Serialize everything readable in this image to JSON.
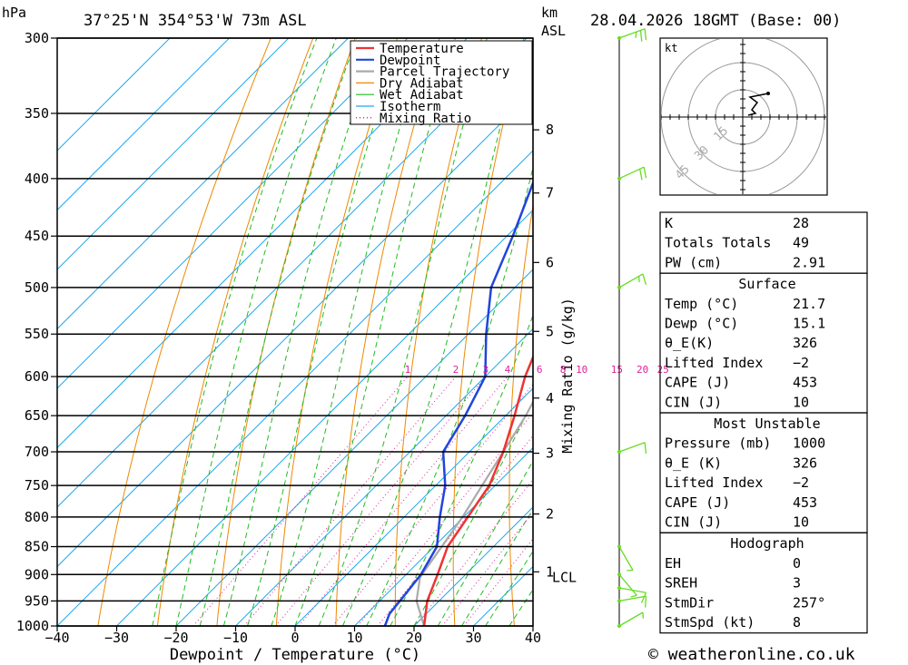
{
  "header": {
    "units_top": "hPa",
    "location": "37°25'N  354°53'W  73m  ASL",
    "km_label": "km",
    "asl_label": "ASL",
    "datetime": "28.04.2026  18GMT  (Base: 00)"
  },
  "footer": {
    "copyright": "© weatheronline.co.uk"
  },
  "colors": {
    "temperature": "#ee3333",
    "dewpoint": "#2244dd",
    "parcel": "#aaaaaa",
    "dry_adiabat": "#ee8800",
    "wet_adiabat": "#22bb22",
    "isotherm": "#22aaee",
    "mixing_ratio": "#dd2299",
    "wind": "#66dd22"
  },
  "chart_data": {
    "type": "skew-t",
    "xlabel": "Dewpoint / Temperature (°C)",
    "ylabel_left": "hPa",
    "ylabel_right": "Mixing Ratio (g/kg)",
    "pressure_levels": [
      300,
      350,
      400,
      450,
      500,
      550,
      600,
      650,
      700,
      750,
      800,
      850,
      900,
      950,
      1000
    ],
    "pressure_labels": [
      "300",
      "350",
      "400",
      "450",
      "500",
      "550",
      "600",
      "650",
      "700",
      "750",
      "800",
      "850",
      "900",
      "950",
      "1000"
    ],
    "temp_ticks": [
      -40,
      -30,
      -20,
      -10,
      0,
      10,
      20,
      30,
      40
    ],
    "temp_tick_labels": [
      "−40",
      "−30",
      "−20",
      "−10",
      "0",
      "10",
      "20",
      "30",
      "40"
    ],
    "km_ticks": [
      {
        "label": "8",
        "p": 362
      },
      {
        "label": "7",
        "p": 412
      },
      {
        "label": "6",
        "p": 475
      },
      {
        "label": "5",
        "p": 547
      },
      {
        "label": "4",
        "p": 627
      },
      {
        "label": "3",
        "p": 702
      },
      {
        "label": "2",
        "p": 795
      },
      {
        "label": "1",
        "p": 895
      }
    ],
    "lcl": {
      "label": "LCL",
      "p": 905
    },
    "mixing_ratio_labels": [
      "1",
      "2",
      "3",
      "4",
      "6",
      "8",
      "10",
      "15",
      "20",
      "25"
    ],
    "mixing_ratio_values": [
      1,
      2,
      3,
      4,
      6,
      8,
      10,
      15,
      20,
      25
    ],
    "legend": [
      "Temperature",
      "Dewpoint",
      "Parcel Trajectory",
      "Dry Adiabat",
      "Wet Adiabat",
      "Isotherm",
      "Mixing Ratio"
    ],
    "series": [
      {
        "name": "Temperature",
        "points": [
          [
            1000,
            21.7
          ],
          [
            950,
            18
          ],
          [
            900,
            15.3
          ],
          [
            850,
            12.3
          ],
          [
            800,
            10.7
          ],
          [
            750,
            9
          ],
          [
            700,
            5.7
          ],
          [
            650,
            1.5
          ],
          [
            600,
            -3.3
          ],
          [
            550,
            -7.5
          ],
          [
            500,
            -12
          ],
          [
            450,
            -18.5
          ],
          [
            400,
            -26
          ],
          [
            350,
            -35
          ],
          [
            300,
            -45
          ]
        ]
      },
      {
        "name": "Dewpoint",
        "points": [
          [
            1000,
            15.1
          ],
          [
            975,
            13.8
          ],
          [
            950,
            13.4
          ],
          [
            900,
            12.5
          ],
          [
            850,
            10.5
          ],
          [
            800,
            6
          ],
          [
            750,
            1.6
          ],
          [
            700,
            -4.4
          ],
          [
            650,
            -6.8
          ],
          [
            600,
            -10
          ],
          [
            550,
            -17
          ],
          [
            500,
            -24
          ],
          [
            450,
            -29
          ],
          [
            400,
            -35
          ],
          [
            350,
            -41
          ],
          [
            300,
            -49
          ]
        ]
      },
      {
        "name": "Parcel Trajectory",
        "points": [
          [
            1000,
            21.7
          ],
          [
            950,
            16.2
          ],
          [
            905,
            12.8
          ],
          [
            850,
            11.3
          ],
          [
            800,
            9.8
          ],
          [
            750,
            7.8
          ],
          [
            700,
            5.7
          ],
          [
            650,
            3.4
          ],
          [
            600,
            0.3
          ],
          [
            550,
            -3.4
          ],
          [
            500,
            -8
          ],
          [
            450,
            -14
          ],
          [
            400,
            -20.5
          ],
          [
            350,
            -29
          ],
          [
            300,
            -39
          ]
        ]
      }
    ],
    "wind_barbs": [
      {
        "p": 300,
        "dir": 250,
        "speed_kt": 25
      },
      {
        "p": 400,
        "dir": 245,
        "speed_kt": 20
      },
      {
        "p": 500,
        "dir": 240,
        "speed_kt": 15
      },
      {
        "p": 700,
        "dir": 250,
        "speed_kt": 10
      },
      {
        "p": 850,
        "dir": 330,
        "speed_kt": 5
      },
      {
        "p": 900,
        "dir": 320,
        "speed_kt": 5
      },
      {
        "p": 925,
        "dir": 280,
        "speed_kt": 10
      },
      {
        "p": 950,
        "dir": 260,
        "speed_kt": 10
      },
      {
        "p": 1000,
        "dir": 240,
        "speed_kt": 5
      }
    ],
    "hodograph": {
      "unit_label": "kt",
      "ring_labels": [
        "15",
        "30",
        "45"
      ],
      "ring_values": [
        15,
        30,
        45
      ],
      "trace_kt": [
        [
          3,
          1
        ],
        [
          7,
          2
        ],
        [
          5,
          4
        ],
        [
          8,
          8
        ],
        [
          4,
          11
        ],
        [
          9,
          12
        ],
        [
          14,
          13
        ]
      ]
    }
  },
  "indices": {
    "top": [
      {
        "label": "K",
        "value": "28"
      },
      {
        "label": "Totals Totals",
        "value": "49"
      },
      {
        "label": "PW (cm)",
        "value": "2.91"
      }
    ],
    "surface": {
      "title": "Surface",
      "rows": [
        {
          "label": "Temp (°C)",
          "value": "21.7"
        },
        {
          "label": "Dewp (°C)",
          "value": "15.1"
        },
        {
          "label": "θ_E(K)",
          "value": "326"
        },
        {
          "label": "Lifted Index",
          "value": "−2"
        },
        {
          "label": "CAPE (J)",
          "value": "453"
        },
        {
          "label": "CIN (J)",
          "value": "10"
        }
      ]
    },
    "most_unstable": {
      "title": "Most Unstable",
      "rows": [
        {
          "label": "Pressure (mb)",
          "value": "1000"
        },
        {
          "label": "θ_E (K)",
          "value": "326"
        },
        {
          "label": "Lifted Index",
          "value": "−2"
        },
        {
          "label": "CAPE (J)",
          "value": "453"
        },
        {
          "label": "CIN (J)",
          "value": "10"
        }
      ]
    },
    "hodograph": {
      "title": "Hodograph",
      "rows": [
        {
          "label": "EH",
          "value": "0"
        },
        {
          "label": "SREH",
          "value": "3"
        },
        {
          "label": "StmDir",
          "value": "257°"
        },
        {
          "label": "StmSpd (kt)",
          "value": "8"
        }
      ]
    }
  }
}
